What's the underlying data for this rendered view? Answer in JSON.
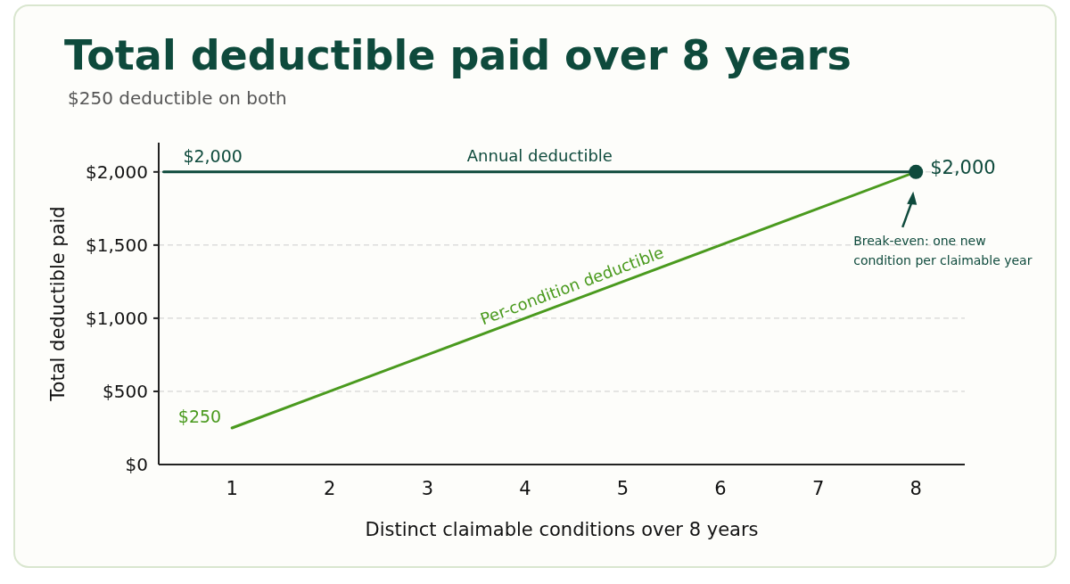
{
  "chart_data": {
    "type": "line",
    "title": "Total deductible paid over 8 years",
    "subtitle": "$250 deductible on both",
    "xlabel": "Distinct claimable conditions over 8 years",
    "ylabel": "Total deductible paid",
    "xlim": [
      0.25,
      8.5
    ],
    "xticks": [
      1,
      2,
      3,
      4,
      5,
      6,
      7,
      8
    ],
    "ylim": [
      0,
      2200
    ],
    "yticks": [
      {
        "value": 0,
        "label": "$0"
      },
      {
        "value": 500,
        "label": "$500"
      },
      {
        "value": 1000,
        "label": "$1,000"
      },
      {
        "value": 1500,
        "label": "$1,500"
      },
      {
        "value": 2000,
        "label": "$2,000"
      }
    ],
    "grid": "y",
    "marker": "none",
    "line_style": "solid",
    "series": [
      {
        "name": "Annual deductible",
        "color": "#0e4a3c",
        "x": [
          0.3,
          8
        ],
        "values": [
          2000,
          2000
        ]
      },
      {
        "name": "Per-condition deductible",
        "color": "#4a9a1e",
        "x": [
          1,
          2,
          3,
          4,
          5,
          6,
          7,
          8
        ],
        "values": [
          250,
          500,
          750,
          1000,
          1250,
          1500,
          1750,
          2000
        ]
      },
      {
        "type": "scatter",
        "color": "#0e4a3c",
        "x": [
          8
        ],
        "values": [
          2000
        ],
        "marker": "circle"
      }
    ],
    "annotations": [
      {
        "text": "$2,000",
        "x": 0.5,
        "y": 2000
      },
      {
        "text": "$250",
        "x": 1,
        "y": 250
      },
      {
        "text": "$2,000",
        "x": 8,
        "y": 2000
      },
      "Break-even: one new condition per claimable year"
    ]
  }
}
